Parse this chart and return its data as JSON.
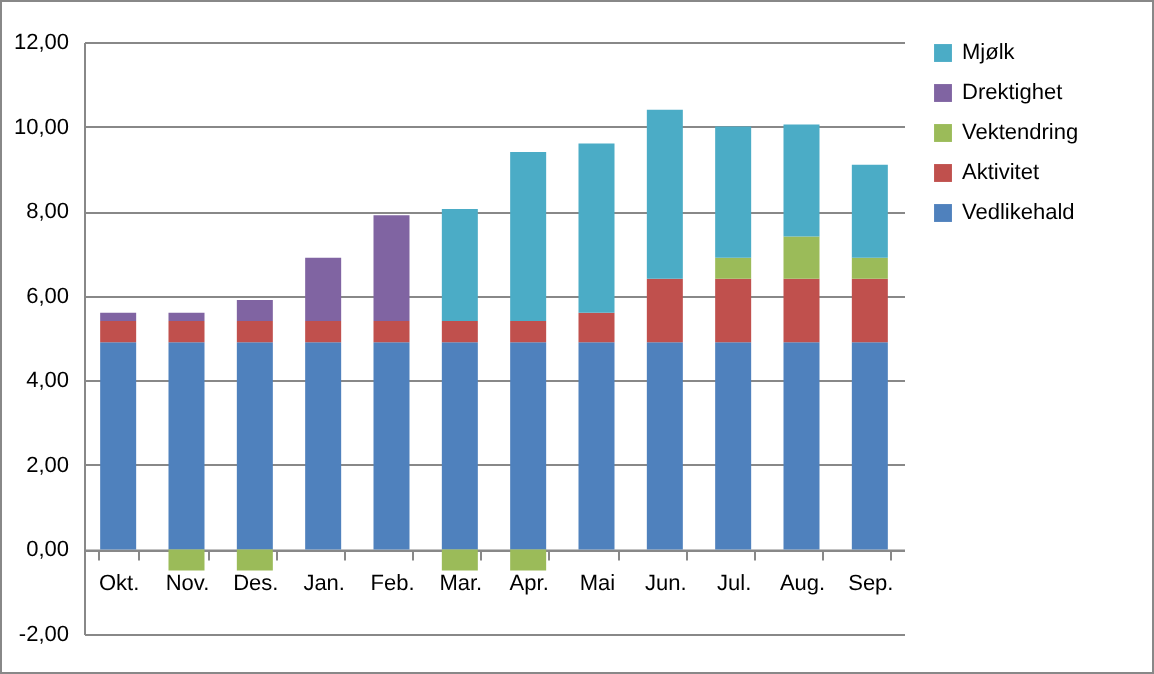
{
  "chart_data": {
    "type": "bar",
    "stacked": true,
    "categories": [
      "Okt.",
      "Nov.",
      "Des.",
      "Jan.",
      "Feb.",
      "Mar.",
      "Apr.",
      "Mai",
      "Jun.",
      "Jul.",
      "Aug.",
      "Sep."
    ],
    "series": [
      {
        "name": "Vedlikehald",
        "color": "#4f81bd",
        "values": [
          4.9,
          4.9,
          4.9,
          4.9,
          4.9,
          4.9,
          4.9,
          4.9,
          4.9,
          4.9,
          4.9,
          4.9
        ]
      },
      {
        "name": "Aktivitet",
        "color": "#c0504d",
        "values": [
          0.5,
          0.5,
          0.5,
          0.5,
          0.5,
          0.5,
          0.5,
          0.7,
          1.5,
          1.5,
          1.5,
          1.5
        ]
      },
      {
        "name": "Vektendring",
        "color": "#9bbb59",
        "values": [
          null,
          -0.5,
          -0.5,
          null,
          null,
          -0.5,
          -0.5,
          null,
          null,
          0.5,
          1.0,
          0.5
        ]
      },
      {
        "name": "Drektighet",
        "color": "#8064a2",
        "values": [
          0.2,
          0.2,
          0.5,
          1.5,
          2.5,
          null,
          null,
          null,
          null,
          null,
          null,
          null
        ]
      },
      {
        "name": "Mjølk",
        "color": "#4bacc6",
        "values": [
          null,
          null,
          null,
          null,
          null,
          2.65,
          4.0,
          4.0,
          4.0,
          3.1,
          2.65,
          2.2
        ]
      }
    ],
    "ylim": [
      -2,
      12
    ],
    "yticks": [
      {
        "value": -2,
        "label": "-2,00"
      },
      {
        "value": 0,
        "label": "0,00"
      },
      {
        "value": 2,
        "label": "2,00"
      },
      {
        "value": 4,
        "label": "4,00"
      },
      {
        "value": 6,
        "label": "6,00"
      },
      {
        "value": 8,
        "label": "8,00"
      },
      {
        "value": 10,
        "label": "10,00"
      },
      {
        "value": 12,
        "label": "12,00"
      }
    ],
    "grid": "y",
    "legend": "right"
  }
}
